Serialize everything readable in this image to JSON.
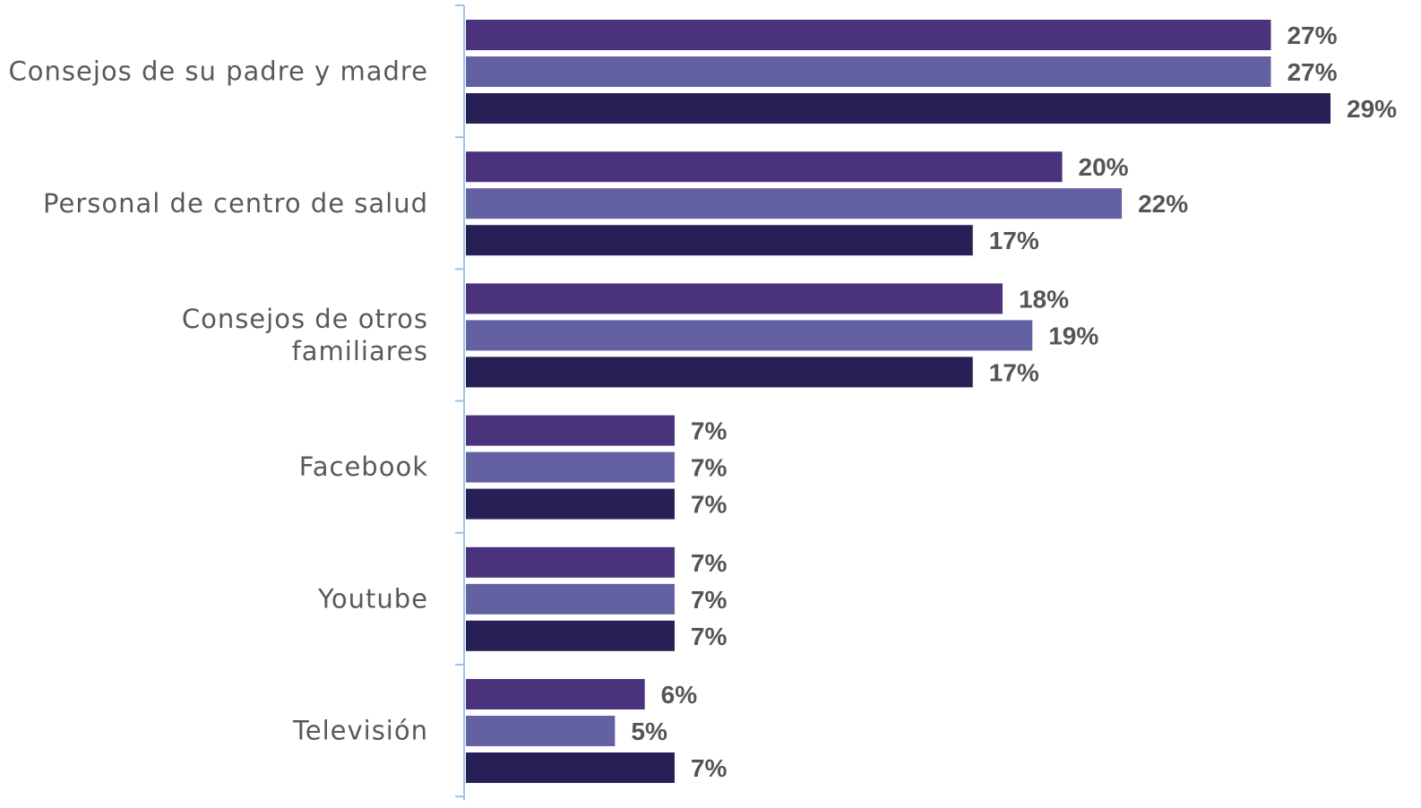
{
  "chart_data": {
    "type": "bar",
    "orientation": "horizontal",
    "categories": [
      "Consejos de su padre y madre",
      "Personal de centro de salud",
      "Consejos de otros familiares",
      "Facebook",
      "Youtube",
      "Televisión"
    ],
    "category_label_lines": [
      [
        "Consejos de su padre y madre"
      ],
      [
        "Personal de centro de salud"
      ],
      [
        "Consejos de otros",
        "familiares"
      ],
      [
        "Facebook"
      ],
      [
        "Youtube"
      ],
      [
        "Televisión"
      ]
    ],
    "series": [
      {
        "values": [
          27,
          20,
          18,
          7,
          7,
          6
        ],
        "color": "#4b327c"
      },
      {
        "values": [
          27,
          22,
          19,
          7,
          7,
          5
        ],
        "color": "#6461a2"
      },
      {
        "values": [
          29,
          17,
          17,
          7,
          7,
          7
        ],
        "color": "#271f55"
      }
    ],
    "value_suffix": "%",
    "xlim": [
      0,
      29
    ],
    "title": "",
    "xlabel": "",
    "ylabel": "",
    "legend": "none",
    "grid": false,
    "axis_color": "#9dc3e6"
  }
}
